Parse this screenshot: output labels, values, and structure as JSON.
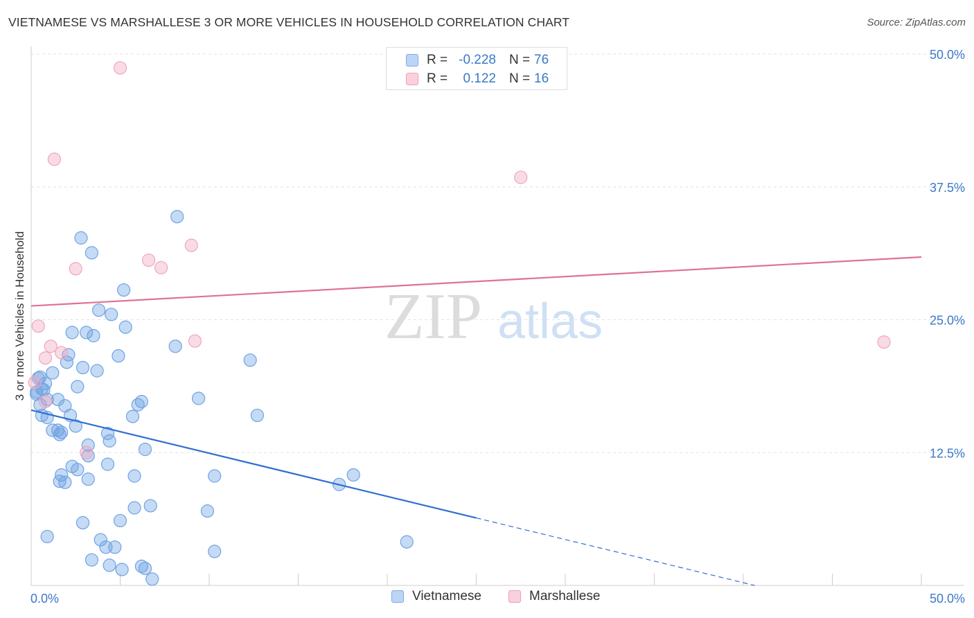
{
  "header": {
    "title": "VIETNAMESE VS MARSHALLESE 3 OR MORE VEHICLES IN HOUSEHOLD CORRELATION CHART",
    "source": "Source: ZipAtlas.com"
  },
  "watermark": {
    "zip": "ZIP",
    "atlas": "atlas"
  },
  "stats": [
    {
      "r_label": "R =",
      "r_value": "-0.228",
      "n_label": "N =",
      "n_value": "76",
      "color": "#a9c8f0"
    },
    {
      "r_label": "R =",
      "r_value": "0.122",
      "n_label": "N =",
      "n_value": "16",
      "color": "#f5b8cb"
    }
  ],
  "legend": [
    {
      "label": "Vietnamese",
      "color": "#a9c8f0"
    },
    {
      "label": "Marshallese",
      "color": "#f5b8cb"
    }
  ],
  "chart_data": {
    "type": "scatter",
    "title": "VIETNAMESE VS MARSHALLESE 3 OR MORE VEHICLES IN HOUSEHOLD CORRELATION CHART",
    "xlabel": "",
    "ylabel": "3 or more Vehicles in Household",
    "xlim": [
      0,
      50
    ],
    "ylim": [
      0,
      50
    ],
    "x_tick_labels": [
      "0.0%",
      "50.0%"
    ],
    "y_ticks": [
      12.5,
      25.0,
      37.5,
      50.0
    ],
    "y_tick_labels": [
      "12.5%",
      "25.0%",
      "37.5%",
      "50.0%"
    ],
    "grid": true,
    "legend_position": "bottom",
    "series": [
      {
        "name": "Vietnamese",
        "color": "#6fa3e3",
        "line_color": "#2f6fd0",
        "trend": {
          "x": [
            0,
            50
          ],
          "y": [
            16.5,
            -3.8
          ],
          "solid_until_x": 25
        },
        "points": [
          [
            0.4,
            19.5
          ],
          [
            0.6,
            18.5
          ],
          [
            0.3,
            18.2
          ],
          [
            0.9,
            17.5
          ],
          [
            0.5,
            17.0
          ],
          [
            0.8,
            19.0
          ],
          [
            0.6,
            16.0
          ],
          [
            0.9,
            15.8
          ],
          [
            1.2,
            14.6
          ],
          [
            1.5,
            14.6
          ],
          [
            1.6,
            14.2
          ],
          [
            1.2,
            20.0
          ],
          [
            1.5,
            17.5
          ],
          [
            1.9,
            16.9
          ],
          [
            2.2,
            16.0
          ],
          [
            2.5,
            15.0
          ],
          [
            2.6,
            18.7
          ],
          [
            2.9,
            20.5
          ],
          [
            2.0,
            21.0
          ],
          [
            2.1,
            21.7
          ],
          [
            2.3,
            23.8
          ],
          [
            3.1,
            23.8
          ],
          [
            3.5,
            23.5
          ],
          [
            3.7,
            20.2
          ],
          [
            3.8,
            25.9
          ],
          [
            4.5,
            25.5
          ],
          [
            4.9,
            21.6
          ],
          [
            5.3,
            24.3
          ],
          [
            5.2,
            27.8
          ],
          [
            3.4,
            31.3
          ],
          [
            2.8,
            32.7
          ],
          [
            8.2,
            34.7
          ],
          [
            8.1,
            22.5
          ],
          [
            4.3,
            14.3
          ],
          [
            4.4,
            13.6
          ],
          [
            3.2,
            13.2
          ],
          [
            3.2,
            12.2
          ],
          [
            2.3,
            11.2
          ],
          [
            2.6,
            10.9
          ],
          [
            1.7,
            10.4
          ],
          [
            1.6,
            9.8
          ],
          [
            1.9,
            9.7
          ],
          [
            3.2,
            10.0
          ],
          [
            4.3,
            11.4
          ],
          [
            5.8,
            10.3
          ],
          [
            6.0,
            17.0
          ],
          [
            6.2,
            17.3
          ],
          [
            5.7,
            15.9
          ],
          [
            6.4,
            12.8
          ],
          [
            9.4,
            17.6
          ],
          [
            12.3,
            21.2
          ],
          [
            12.7,
            16.0
          ],
          [
            10.3,
            10.3
          ],
          [
            17.3,
            9.5
          ],
          [
            18.1,
            10.4
          ],
          [
            21.1,
            4.1
          ],
          [
            0.9,
            4.6
          ],
          [
            2.9,
            5.9
          ],
          [
            3.9,
            4.3
          ],
          [
            4.2,
            3.6
          ],
          [
            4.7,
            3.6
          ],
          [
            3.4,
            2.4
          ],
          [
            4.4,
            1.9
          ],
          [
            5.1,
            1.5
          ],
          [
            6.2,
            1.8
          ],
          [
            6.4,
            1.6
          ],
          [
            6.8,
            0.6
          ],
          [
            5.0,
            6.1
          ],
          [
            5.8,
            7.3
          ],
          [
            6.7,
            7.5
          ],
          [
            9.9,
            7.0
          ],
          [
            10.3,
            3.2
          ],
          [
            0.3,
            18.0
          ],
          [
            0.5,
            19.6
          ],
          [
            1.7,
            14.4
          ],
          [
            0.7,
            18.4
          ]
        ]
      },
      {
        "name": "Marshallese",
        "color": "#f0a5bd",
        "line_color": "#e07095",
        "trend": {
          "x": [
            0,
            50
          ],
          "y": [
            26.3,
            30.9
          ]
        },
        "points": [
          [
            5.0,
            48.7
          ],
          [
            1.3,
            40.1
          ],
          [
            27.5,
            38.4
          ],
          [
            9.0,
            32.0
          ],
          [
            6.6,
            30.6
          ],
          [
            7.3,
            29.9
          ],
          [
            2.5,
            29.8
          ],
          [
            0.4,
            24.4
          ],
          [
            1.1,
            22.5
          ],
          [
            9.2,
            23.0
          ],
          [
            1.7,
            21.9
          ],
          [
            0.8,
            21.4
          ],
          [
            47.9,
            22.9
          ],
          [
            0.2,
            19.1
          ],
          [
            0.8,
            17.3
          ],
          [
            3.1,
            12.5
          ]
        ]
      }
    ]
  }
}
